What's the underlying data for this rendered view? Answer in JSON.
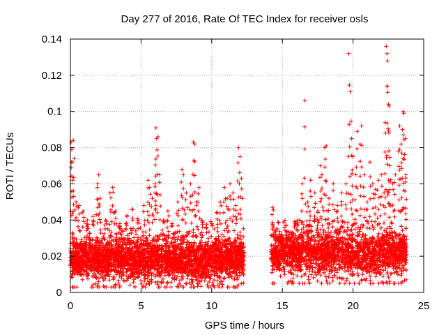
{
  "chart_data": {
    "type": "scatter",
    "title": "Day 277 of 2016, Rate Of TEC Index for receiver osls",
    "xlabel": "GPS time / hours",
    "ylabel": "ROTI / TECUs",
    "xlim": [
      0,
      25
    ],
    "ylim": [
      0,
      0.14
    ],
    "xticks": [
      0,
      5,
      10,
      15,
      20,
      25
    ],
    "xtick_labels": [
      "0",
      "5",
      "10",
      "15",
      "20",
      "25"
    ],
    "yticks": [
      0,
      0.02,
      0.04,
      0.06,
      0.08,
      0.1,
      0.12,
      0.14
    ],
    "ytick_labels": [
      "0",
      "0.02",
      "0.04",
      "0.06",
      "0.08",
      "0.1",
      "0.12",
      "0.14"
    ],
    "grid": true,
    "marker": "+",
    "marker_color": "#ff0000",
    "series": [
      {
        "name": "ROTI",
        "points": [
          [
            0.05,
            0.083
          ],
          [
            0.1,
            0.079
          ],
          [
            0.15,
            0.072
          ],
          [
            0.2,
            0.084
          ],
          [
            0.4,
            0.05
          ],
          [
            0.6,
            0.048
          ],
          [
            0.9,
            0.045
          ],
          [
            1.2,
            0.04
          ],
          [
            1.6,
            0.042
          ],
          [
            1.9,
            0.058
          ],
          [
            2.0,
            0.065
          ],
          [
            2.1,
            0.052
          ],
          [
            2.5,
            0.04
          ],
          [
            2.8,
            0.055
          ],
          [
            3.0,
            0.058
          ],
          [
            3.2,
            0.045
          ],
          [
            3.5,
            0.038
          ],
          [
            4.0,
            0.042
          ],
          [
            4.4,
            0.046
          ],
          [
            4.8,
            0.04
          ],
          [
            5.2,
            0.048
          ],
          [
            5.5,
            0.062
          ],
          [
            5.6,
            0.058
          ],
          [
            5.8,
            0.052
          ],
          [
            6.0,
            0.06
          ],
          [
            6.05,
            0.091
          ],
          [
            6.1,
            0.085
          ],
          [
            6.2,
            0.086
          ],
          [
            6.3,
            0.065
          ],
          [
            6.6,
            0.04
          ],
          [
            6.9,
            0.045
          ],
          [
            7.2,
            0.038
          ],
          [
            7.6,
            0.05
          ],
          [
            7.9,
            0.068
          ],
          [
            8.0,
            0.065
          ],
          [
            8.2,
            0.055
          ],
          [
            8.5,
            0.06
          ],
          [
            8.7,
            0.083
          ],
          [
            8.8,
            0.082
          ],
          [
            8.9,
            0.05
          ],
          [
            9.1,
            0.058
          ],
          [
            9.3,
            0.04
          ],
          [
            9.6,
            0.036
          ],
          [
            10.0,
            0.038
          ],
          [
            10.4,
            0.044
          ],
          [
            10.6,
            0.05
          ],
          [
            10.9,
            0.058
          ],
          [
            11.1,
            0.052
          ],
          [
            11.3,
            0.06
          ],
          [
            11.5,
            0.055
          ],
          [
            11.7,
            0.048
          ],
          [
            11.9,
            0.08
          ],
          [
            12.0,
            0.075
          ],
          [
            12.1,
            0.063
          ],
          [
            14.3,
            0.047
          ],
          [
            14.6,
            0.035
          ],
          [
            15.0,
            0.03
          ],
          [
            15.5,
            0.032
          ],
          [
            15.9,
            0.038
          ],
          [
            16.1,
            0.04
          ],
          [
            16.4,
            0.06
          ],
          [
            16.6,
            0.106
          ],
          [
            16.8,
            0.05
          ],
          [
            17.0,
            0.062
          ],
          [
            17.3,
            0.055
          ],
          [
            17.5,
            0.045
          ],
          [
            17.7,
            0.07
          ],
          [
            17.8,
            0.065
          ],
          [
            18.0,
            0.08
          ],
          [
            18.1,
            0.081
          ],
          [
            18.3,
            0.052
          ],
          [
            18.6,
            0.06
          ],
          [
            18.9,
            0.048
          ],
          [
            19.2,
            0.055
          ],
          [
            19.5,
            0.06
          ],
          [
            19.7,
            0.132
          ],
          [
            19.8,
            0.111
          ],
          [
            19.9,
            0.085
          ],
          [
            20.0,
            0.075
          ],
          [
            20.2,
            0.065
          ],
          [
            20.3,
            0.089
          ],
          [
            20.5,
            0.082
          ],
          [
            20.6,
            0.092
          ],
          [
            20.8,
            0.065
          ],
          [
            21.0,
            0.05
          ],
          [
            21.2,
            0.072
          ],
          [
            21.4,
            0.06
          ],
          [
            21.6,
            0.057
          ],
          [
            21.8,
            0.062
          ],
          [
            22.0,
            0.065
          ],
          [
            22.2,
            0.055
          ],
          [
            22.3,
            0.088
          ],
          [
            22.35,
            0.136
          ],
          [
            22.4,
            0.132
          ],
          [
            22.45,
            0.128
          ],
          [
            22.5,
            0.104
          ],
          [
            22.55,
            0.103
          ],
          [
            22.6,
            0.07
          ],
          [
            22.8,
            0.06
          ],
          [
            23.0,
            0.065
          ],
          [
            23.2,
            0.078
          ],
          [
            23.3,
            0.092
          ],
          [
            23.4,
            0.082
          ],
          [
            23.5,
            0.09
          ],
          [
            23.55,
            0.1
          ],
          [
            23.6,
            0.099
          ],
          [
            23.7,
            0.085
          ],
          [
            23.75,
            0.065
          ]
        ]
      }
    ],
    "dense_band": {
      "segments": [
        {
          "x_start": 0.0,
          "x_end": 12.3,
          "y_min": 0.003,
          "y_max": 0.035,
          "y_center": 0.018
        },
        {
          "x_start": 14.2,
          "x_end": 23.8,
          "y_min": 0.005,
          "y_max": 0.04,
          "y_center": 0.021
        }
      ]
    }
  }
}
